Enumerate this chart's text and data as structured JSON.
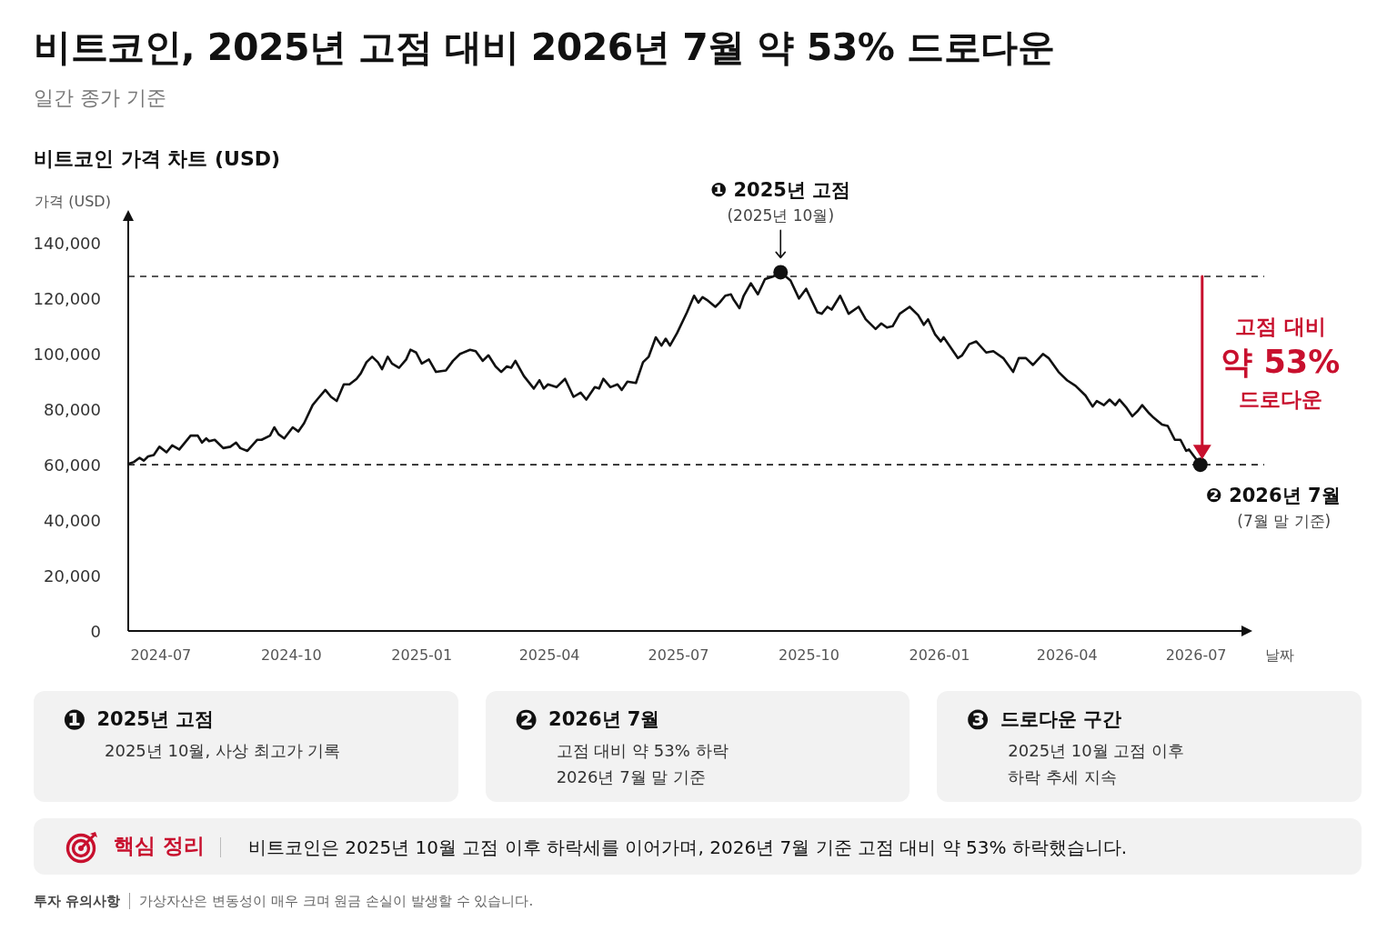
{
  "chart_data": {
    "type": "line",
    "title": "비트코인, 2025년 고점 대비 2026년 7월 약 53% 드로다운",
    "subtitle": "일간 종가 기준",
    "xlabel": "날짜",
    "ylabel": "가격 (USD)",
    "xlim": [
      "2024-06-08",
      "2026-08-02"
    ],
    "xticks": [
      "2024-07",
      "2024-10",
      "2025-01",
      "2025-04",
      "2025-07",
      "2025-10",
      "2026-01",
      "2026-04",
      "2026-07"
    ],
    "ylim": [
      0,
      148000
    ],
    "yticks": [
      0,
      {
        "value": 20000,
        "label": "20,000"
      },
      {
        "value": 40000,
        "label": "40,000"
      },
      {
        "value": 60000,
        "label": "60,000"
      },
      {
        "value": 80000,
        "label": "80,000"
      },
      {
        "value": 100000,
        "label": "100,000"
      },
      {
        "value": 120000,
        "label": "120,000"
      },
      {
        "value": 140000,
        "label": "140,000"
      }
    ],
    "grid": false,
    "legend": false,
    "series": [
      {
        "type": "line",
        "color": "#111111",
        "x": [
          "2024-06-09",
          "2024-06-12",
          "2024-06-16",
          "2024-06-19",
          "2024-06-22",
          "2024-06-26",
          "2024-06-30",
          "2024-07-05",
          "2024-07-09",
          "2024-07-14",
          "2024-07-22",
          "2024-07-27",
          "2024-07-30",
          "2024-08-02",
          "2024-08-04",
          "2024-08-08",
          "2024-08-14",
          "2024-08-19",
          "2024-08-23",
          "2024-08-26",
          "2024-08-31",
          "2024-09-07",
          "2024-09-10",
          "2024-09-16",
          "2024-09-19",
          "2024-09-22",
          "2024-09-26",
          "2024-10-02",
          "2024-10-06",
          "2024-10-10",
          "2024-10-16",
          "2024-10-20",
          "2024-10-25",
          "2024-10-29",
          "2024-11-02",
          "2024-11-07",
          "2024-11-11",
          "2024-11-16",
          "2024-11-19",
          "2024-11-23",
          "2024-11-27",
          "2024-12-01",
          "2024-12-04",
          "2024-12-08",
          "2024-12-11",
          "2024-12-16",
          "2024-12-21",
          "2024-12-24",
          "2024-12-28",
          "2025-01-01",
          "2025-01-06",
          "2025-01-11",
          "2025-01-18",
          "2025-01-23",
          "2025-01-28",
          "2025-02-04",
          "2025-02-08",
          "2025-02-13",
          "2025-02-17",
          "2025-02-22",
          "2025-02-26",
          "2025-03-02",
          "2025-03-05",
          "2025-03-08",
          "2025-03-14",
          "2025-03-21",
          "2025-03-25",
          "2025-03-28",
          "2025-03-31",
          "2025-04-06",
          "2025-04-12",
          "2025-04-18",
          "2025-04-23",
          "2025-04-27",
          "2025-05-03",
          "2025-05-06",
          "2025-05-09",
          "2025-05-14",
          "2025-05-19",
          "2025-05-22",
          "2025-05-26",
          "2025-06-01",
          "2025-06-06",
          "2025-06-10",
          "2025-06-15",
          "2025-06-19",
          "2025-06-22",
          "2025-06-25",
          "2025-06-30",
          "2025-07-07",
          "2025-07-12",
          "2025-07-15",
          "2025-07-18",
          "2025-07-21",
          "2025-07-27",
          "2025-07-30",
          "2025-08-03",
          "2025-08-07",
          "2025-08-09",
          "2025-08-13",
          "2025-08-16",
          "2025-08-21",
          "2025-08-26",
          "2025-08-31",
          "2025-09-06",
          "2025-09-11",
          "2025-09-18",
          "2025-09-24",
          "2025-09-29",
          "2025-10-07",
          "2025-10-10",
          "2025-10-14",
          "2025-10-17",
          "2025-10-23",
          "2025-10-29",
          "2025-11-05",
          "2025-11-10",
          "2025-11-17",
          "2025-11-21",
          "2025-11-25",
          "2025-11-29",
          "2025-12-04",
          "2025-12-11",
          "2025-12-17",
          "2025-12-21",
          "2025-12-24",
          "2025-12-29",
          "2026-01-02",
          "2026-01-04",
          "2026-01-14",
          "2026-01-17",
          "2026-01-22",
          "2026-01-27",
          "2026-02-03",
          "2026-02-08",
          "2026-02-15",
          "2026-02-22",
          "2026-02-26",
          "2026-03-03",
          "2026-03-08",
          "2026-03-15",
          "2026-03-19",
          "2026-03-26",
          "2026-04-01",
          "2026-04-07",
          "2026-04-14",
          "2026-04-19",
          "2026-04-22",
          "2026-04-27",
          "2026-05-01",
          "2026-05-05",
          "2026-05-08",
          "2026-05-13",
          "2026-05-17",
          "2026-05-21",
          "2026-05-24",
          "2026-05-29",
          "2026-06-01",
          "2026-06-07",
          "2026-06-11",
          "2026-06-16",
          "2026-06-20",
          "2026-06-24",
          "2026-06-26",
          "2026-07-04"
        ],
        "values": [
          60500,
          61000,
          62500,
          61500,
          63000,
          63500,
          66500,
          64500,
          67000,
          65500,
          70500,
          70500,
          68000,
          69500,
          68500,
          69000,
          66000,
          66500,
          68000,
          66000,
          65000,
          69000,
          69000,
          70500,
          73500,
          71000,
          69500,
          73500,
          72000,
          75000,
          81500,
          84000,
          87000,
          84500,
          83000,
          89000,
          89000,
          91000,
          93000,
          97000,
          99000,
          97000,
          94500,
          99000,
          96500,
          95000,
          98000,
          101500,
          100500,
          96500,
          98000,
          93500,
          94000,
          97500,
          100000,
          101500,
          101000,
          97500,
          99500,
          95500,
          93500,
          95500,
          95000,
          97500,
          92000,
          87500,
          90500,
          87500,
          89000,
          88000,
          91000,
          84500,
          86000,
          83500,
          88000,
          87500,
          91000,
          88000,
          89000,
          87000,
          90000,
          89500,
          97000,
          99000,
          106000,
          103000,
          105500,
          103000,
          107500,
          115000,
          121000,
          118500,
          120500,
          119500,
          117000,
          118500,
          121000,
          121500,
          119500,
          116500,
          121000,
          125500,
          121500,
          127000,
          128000,
          129500,
          126500,
          120000,
          123500,
          115000,
          114500,
          117000,
          116000,
          121000,
          114500,
          117000,
          112500,
          109000,
          111000,
          109500,
          110000,
          114500,
          117000,
          114000,
          110500,
          112500,
          107000,
          104500,
          106000,
          98500,
          99500,
          103500,
          104500,
          100500,
          101000,
          98500,
          93500,
          98500,
          98500,
          96000,
          100000,
          98500,
          93500,
          90500,
          88500,
          85000,
          81000,
          83000,
          81500,
          83500,
          81500,
          83500,
          80500,
          77500,
          79500,
          81500,
          78500,
          77000,
          74500,
          74000,
          69000,
          69000,
          65000,
          65500,
          60000
        ]
      },
      {
        "type": "scatter",
        "color": "#111111",
        "marker": "circle",
        "x": [
          "2025-09-11",
          "2026-07-04"
        ],
        "values": [
          129500,
          60000
        ]
      }
    ],
    "ref_lines": [
      {
        "axis": "y",
        "value": 128000,
        "color": "#222222",
        "line_style": "dashed"
      },
      {
        "axis": "y",
        "value": 60000,
        "color": "#222222",
        "line_style": "dashed"
      }
    ],
    "annotations": [
      "비트코인 가격 차트 (USD)",
      {
        "text": "❶ 2025년 고점\n(2025년 10월)",
        "x": "2025-09-11",
        "y": 129500
      },
      {
        "text": "❷ 2026년 7월\n(7월 말 기준)",
        "x": "2026-07-04",
        "y": 60000
      },
      "고점 대비\n약 53%\n드로다운",
      "❶ 2025년 고점\n2025년 10월, 사상 최고가 기록",
      "❷ 2026년 7월\n고점 대비 약 53% 하락\n2026년 7월 말 기준",
      "❸ 드로다운 구간\n2025년 10월 고점 이후\n하락 추세 지속",
      "핵심 정리\n비트코인은 2025년 10월 고점 이후 하락세를 이어가며, 2026년 7월 기준 고점 대비 약 53% 하락했습니다.",
      "투자 유의사항\n가상자산은 변동성이 매우 크며 원금 손실이 발생할 수 있습니다."
    ]
  }
}
